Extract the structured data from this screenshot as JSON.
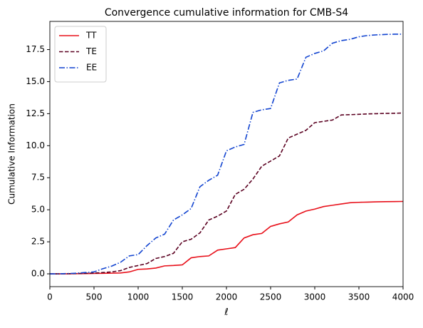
{
  "chart_data": {
    "type": "line",
    "title": "Convergence cumulative information for CMB-S4",
    "xlabel": "ℓ",
    "ylabel": "Cumulative Information",
    "x": [
      0,
      100,
      200,
      300,
      400,
      500,
      600,
      700,
      800,
      900,
      1000,
      1100,
      1200,
      1300,
      1400,
      1500,
      1600,
      1700,
      1800,
      1900,
      2000,
      2100,
      2200,
      2300,
      2400,
      2500,
      2600,
      2700,
      2800,
      2900,
      3000,
      3100,
      3200,
      3300,
      3400,
      3500,
      3600,
      3700,
      3800,
      3900,
      4000
    ],
    "series": [
      {
        "name": "TT",
        "color": "#e8101a",
        "linestyle": "solid",
        "values": [
          0,
          0,
          0,
          0.01,
          0.02,
          0.03,
          0.04,
          0.05,
          0.07,
          0.15,
          0.35,
          0.38,
          0.45,
          0.62,
          0.65,
          0.7,
          1.25,
          1.35,
          1.4,
          1.85,
          1.95,
          2.05,
          2.8,
          3.05,
          3.15,
          3.7,
          3.9,
          4.05,
          4.6,
          4.9,
          5.05,
          5.25,
          5.35,
          5.45,
          5.55,
          5.58,
          5.6,
          5.62,
          5.63,
          5.64,
          5.65
        ]
      },
      {
        "name": "TE",
        "color": "#5a0020",
        "linestyle": "dashed",
        "values": [
          0,
          0,
          0.01,
          0.02,
          0.04,
          0.06,
          0.1,
          0.15,
          0.25,
          0.5,
          0.65,
          0.8,
          1.2,
          1.35,
          1.6,
          2.5,
          2.7,
          3.2,
          4.2,
          4.5,
          4.9,
          6.2,
          6.6,
          7.4,
          8.4,
          8.8,
          9.2,
          10.6,
          10.9,
          11.2,
          11.8,
          11.9,
          12.0,
          12.4,
          12.42,
          12.45,
          12.48,
          12.5,
          12.52,
          12.53,
          12.55
        ]
      },
      {
        "name": "EE",
        "color": "#1244d0",
        "linestyle": "dashdot",
        "values": [
          0,
          0,
          0.02,
          0.05,
          0.1,
          0.15,
          0.4,
          0.6,
          0.9,
          1.4,
          1.5,
          2.2,
          2.8,
          3.1,
          4.2,
          4.6,
          5.1,
          6.8,
          7.3,
          7.7,
          9.6,
          9.9,
          10.1,
          12.6,
          12.8,
          12.9,
          14.9,
          15.1,
          15.2,
          16.9,
          17.2,
          17.4,
          18.0,
          18.2,
          18.3,
          18.5,
          18.6,
          18.65,
          18.68,
          18.7,
          18.7
        ]
      }
    ],
    "xlim": [
      0,
      4000
    ],
    "xticks": [
      0,
      500,
      1000,
      1500,
      2000,
      2500,
      3000,
      3500,
      4000
    ],
    "ylim": [
      -1,
      19.7
    ],
    "yticks": [
      {
        "value": 0,
        "label": "0.0"
      },
      2.5,
      {
        "value": 5,
        "label": "5.0"
      },
      7.5,
      {
        "value": 10,
        "label": "10.0"
      },
      12.5,
      {
        "value": 15,
        "label": "15.0"
      },
      17.5
    ],
    "legend": "upper left",
    "grid": false
  }
}
